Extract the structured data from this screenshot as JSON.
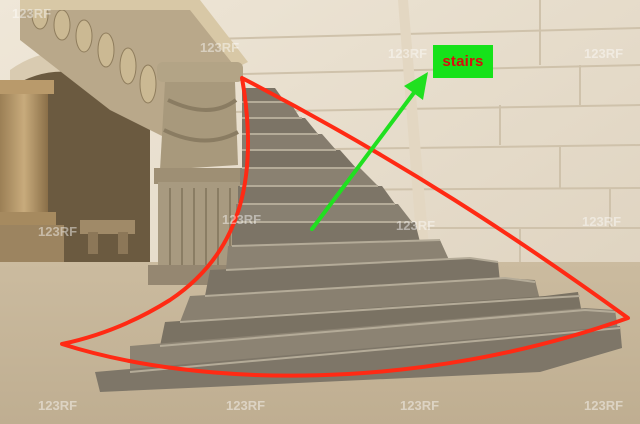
{
  "annotation": {
    "label": "stairs",
    "label_bg_color": "#16e21a",
    "label_text_color": "#d80e0e",
    "arrow_color": "#20e020",
    "outline_color": "#ff2a14"
  },
  "watermark": {
    "text": "123RF"
  }
}
